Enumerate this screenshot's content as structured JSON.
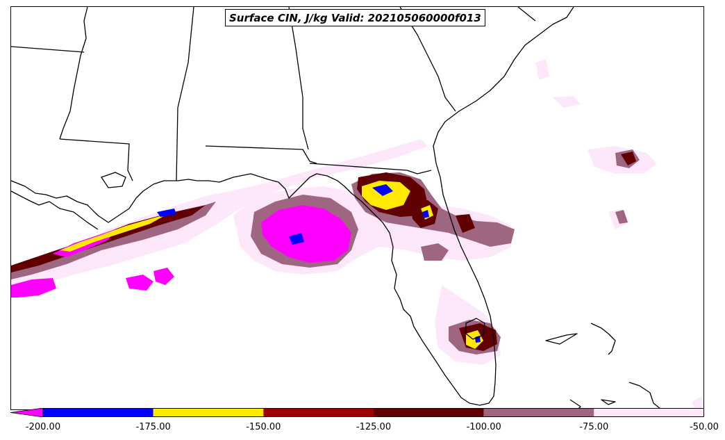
{
  "title": "Surface CIN, J/kg Valid: 202105060000f013",
  "colorbar": {
    "extend": "min",
    "bins": [
      {
        "from": -200,
        "to": -175,
        "color": "#0000ff"
      },
      {
        "from": -175,
        "to": -150,
        "color": "#ffea00"
      },
      {
        "from": -150,
        "to": -125,
        "color": "#a00000"
      },
      {
        "from": -125,
        "to": -100,
        "color": "#600000"
      },
      {
        "from": -100,
        "to": -75,
        "color": "#9e6680"
      },
      {
        "from": -75,
        "to": -50,
        "color": "#fde7fb"
      }
    ],
    "under_color": "#ff00ff",
    "ticks": [
      "-200.00",
      "-175.00",
      "-150.00",
      "-125.00",
      "-100.00",
      "-75.00",
      "-50.00"
    ]
  },
  "colors": {
    "very_light": "#fde7fb",
    "light": "#fcd2f6",
    "mauve": "#9e6680",
    "dark_red": "#600000",
    "red": "#a00000",
    "yellow": "#ffea00",
    "blue": "#0000ff",
    "magenta": "#ff00ff",
    "boundary": "#000000"
  }
}
